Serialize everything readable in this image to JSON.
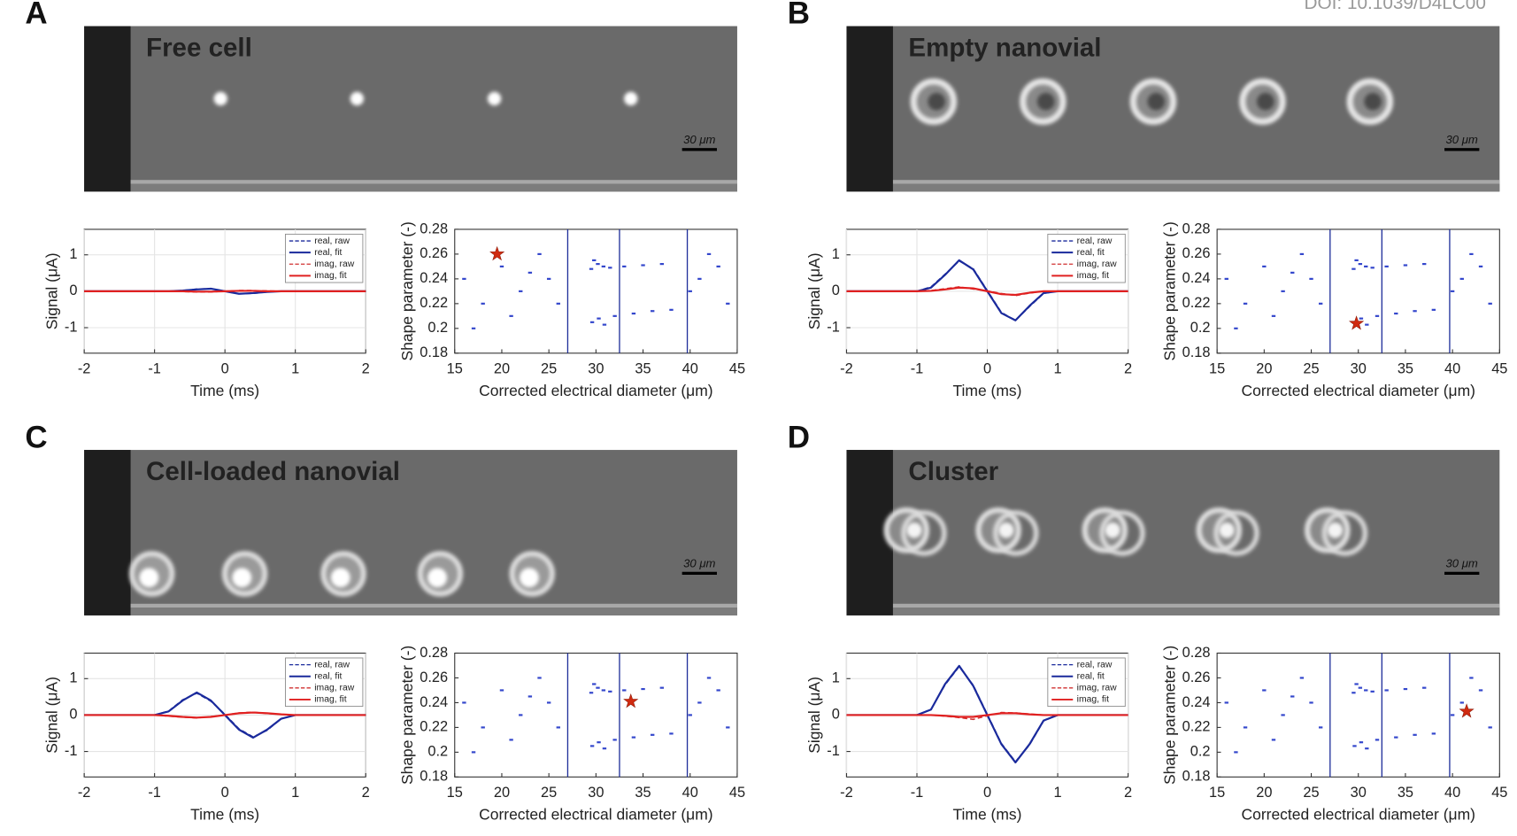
{
  "doi": "DOI: 10.1039/D4LC00",
  "panels": [
    {
      "letter": "A",
      "image_title": "Free cell",
      "title_color": "#f2b597",
      "scale_bar": "30 μm"
    },
    {
      "letter": "B",
      "image_title": "Empty nanovial",
      "title_color": "#5cd98a",
      "scale_bar": "30 μm"
    },
    {
      "letter": "C",
      "image_title": "Cell-loaded nanovial",
      "title_color": "#4aa6e6",
      "scale_bar": "30 μm"
    },
    {
      "letter": "D",
      "image_title": "Cluster",
      "title_color": "#aaaaaa",
      "scale_bar": "30 μm"
    }
  ],
  "chart_data": [
    {
      "type": "line",
      "xlabel": "Time (ms)",
      "ylabel": "Signal (μA)",
      "x": [
        -2,
        -1,
        -0.8,
        -0.6,
        -0.4,
        -0.2,
        0,
        0.2,
        0.4,
        0.6,
        0.8,
        1,
        2
      ],
      "xlim": [
        -2,
        2
      ],
      "xticks": [
        -2,
        -1,
        0,
        1,
        2
      ],
      "ylim": [
        -1.7,
        1.7
      ],
      "yticks": [
        -1,
        0,
        1
      ],
      "grid": true,
      "legend": "upper right",
      "series": [
        {
          "name": "real, raw",
          "color": "#1a2a9c",
          "dashed": true,
          "values": [
            0,
            0,
            0,
            0.02,
            0.06,
            0.07,
            0,
            -0.07,
            -0.06,
            -0.02,
            0,
            0,
            0
          ]
        },
        {
          "name": "real, fit",
          "color": "#1a2a9c",
          "dashed": false,
          "values": [
            0,
            0,
            0,
            0.02,
            0.05,
            0.07,
            0,
            -0.07,
            -0.05,
            -0.02,
            0,
            0,
            0
          ]
        },
        {
          "name": "imag, raw",
          "color": "#d03030",
          "dashed": true,
          "values": [
            0,
            0,
            0,
            -0.01,
            -0.02,
            -0.02,
            0,
            0.02,
            0.02,
            0.01,
            0,
            0,
            0
          ]
        },
        {
          "name": "imag, fit",
          "color": "#e02020",
          "dashed": false,
          "values": [
            0,
            0,
            0,
            0,
            -0.01,
            -0.01,
            0,
            0.01,
            0.01,
            0,
            0,
            0,
            0
          ]
        }
      ]
    },
    {
      "type": "scatter",
      "xlabel": "Corrected electrical diameter (μm)",
      "ylabel": "Shape parameter (-)",
      "xlim": [
        15,
        45
      ],
      "xticks": [
        15,
        20,
        25,
        30,
        35,
        40,
        45
      ],
      "ylim": [
        0.18,
        0.28
      ],
      "yticks": [
        0.18,
        0.2,
        0.22,
        0.24,
        0.26,
        0.28
      ],
      "gates": [
        27,
        32.5,
        39.7
      ],
      "gate_color": "#1f2f9a",
      "points": {
        "color": "#3447cc",
        "x": [
          29.5,
          30.2,
          30.8,
          29.8,
          31.5,
          33,
          35,
          37,
          29.6,
          30.3,
          30.9,
          32,
          34,
          36,
          38,
          16,
          18,
          20,
          22,
          24,
          17,
          21,
          25,
          41,
          43,
          44,
          42,
          40,
          26,
          23
        ],
        "y": [
          0.248,
          0.252,
          0.25,
          0.255,
          0.249,
          0.25,
          0.251,
          0.252,
          0.205,
          0.208,
          0.203,
          0.21,
          0.212,
          0.214,
          0.215,
          0.24,
          0.22,
          0.25,
          0.23,
          0.26,
          0.2,
          0.21,
          0.24,
          0.24,
          0.25,
          0.22,
          0.26,
          0.23,
          0.22,
          0.245
        ]
      },
      "highlight": {
        "x": 19.5,
        "y": 0.26,
        "color": "#d02a10"
      }
    },
    {
      "type": "line",
      "xlabel": "Time (ms)",
      "ylabel": "Signal (μA)",
      "x": [
        -2,
        -1,
        -0.8,
        -0.6,
        -0.4,
        -0.2,
        0,
        0.2,
        0.4,
        0.6,
        0.8,
        1,
        2
      ],
      "xlim": [
        -2,
        2
      ],
      "xticks": [
        -2,
        -1,
        0,
        1,
        2
      ],
      "ylim": [
        -1.7,
        1.7
      ],
      "yticks": [
        -1,
        0,
        1
      ],
      "grid": true,
      "legend": "upper right",
      "series": [
        {
          "name": "real, raw",
          "color": "#1a2a9c",
          "dashed": true,
          "values": [
            0,
            0,
            0.12,
            0.47,
            0.83,
            0.62,
            0.02,
            -0.58,
            -0.8,
            -0.42,
            -0.06,
            0,
            0
          ]
        },
        {
          "name": "real, fit",
          "color": "#1a2a9c",
          "dashed": false,
          "values": [
            0,
            0,
            0.1,
            0.45,
            0.85,
            0.6,
            0,
            -0.6,
            -0.8,
            -0.4,
            -0.05,
            0,
            0
          ]
        },
        {
          "name": "imag, raw",
          "color": "#d03030",
          "dashed": true,
          "values": [
            0,
            0,
            0.02,
            0.07,
            0.12,
            0.06,
            0.01,
            -0.06,
            -0.12,
            -0.05,
            0,
            0,
            0
          ]
        },
        {
          "name": "imag, fit",
          "color": "#e02020",
          "dashed": false,
          "values": [
            0,
            0,
            0.01,
            0.05,
            0.1,
            0.08,
            0,
            -0.08,
            -0.1,
            -0.04,
            0,
            0,
            0
          ]
        }
      ]
    },
    {
      "type": "scatter",
      "xlabel": "Corrected electrical diameter (μm)",
      "ylabel": "Shape parameter (-)",
      "xlim": [
        15,
        45
      ],
      "xticks": [
        15,
        20,
        25,
        30,
        35,
        40,
        45
      ],
      "ylim": [
        0.18,
        0.28
      ],
      "yticks": [
        0.18,
        0.2,
        0.22,
        0.24,
        0.26,
        0.28
      ],
      "gates": [
        27,
        32.5,
        39.7
      ],
      "gate_color": "#1f2f9a",
      "points": {
        "color": "#3447cc",
        "x": [
          29.5,
          30.2,
          30.8,
          29.8,
          31.5,
          33,
          35,
          37,
          29.6,
          30.3,
          30.9,
          32,
          34,
          36,
          38,
          16,
          18,
          20,
          22,
          24,
          17,
          21,
          25,
          41,
          43,
          44,
          42,
          40,
          26,
          23
        ],
        "y": [
          0.248,
          0.252,
          0.25,
          0.255,
          0.249,
          0.25,
          0.251,
          0.252,
          0.205,
          0.208,
          0.203,
          0.21,
          0.212,
          0.214,
          0.215,
          0.24,
          0.22,
          0.25,
          0.23,
          0.26,
          0.2,
          0.21,
          0.24,
          0.24,
          0.25,
          0.22,
          0.26,
          0.23,
          0.22,
          0.245
        ]
      },
      "highlight": {
        "x": 29.8,
        "y": 0.204,
        "color": "#d02a10"
      }
    },
    {
      "type": "line",
      "xlabel": "Time (ms)",
      "ylabel": "Signal (μA)",
      "x": [
        -2,
        -1,
        -0.8,
        -0.6,
        -0.4,
        -0.2,
        0,
        0.2,
        0.4,
        0.6,
        0.8,
        1,
        2
      ],
      "xlim": [
        -2,
        2
      ],
      "xticks": [
        -2,
        -1,
        0,
        1,
        2
      ],
      "ylim": [
        -1.7,
        1.7
      ],
      "yticks": [
        -1,
        0,
        1
      ],
      "grid": true,
      "legend": "upper right",
      "series": [
        {
          "name": "real, raw",
          "color": "#1a2a9c",
          "dashed": true,
          "values": [
            0,
            0,
            0.11,
            0.42,
            0.6,
            0.38,
            0.02,
            -0.38,
            -0.6,
            -0.42,
            -0.1,
            0,
            0
          ]
        },
        {
          "name": "real, fit",
          "color": "#1a2a9c",
          "dashed": false,
          "values": [
            0,
            0,
            0.1,
            0.4,
            0.62,
            0.4,
            0,
            -0.4,
            -0.62,
            -0.4,
            -0.1,
            0,
            0
          ]
        },
        {
          "name": "imag, raw",
          "color": "#d03030",
          "dashed": true,
          "values": [
            0,
            0,
            -0.03,
            -0.06,
            -0.08,
            -0.04,
            0,
            0.06,
            0.08,
            0.04,
            0.02,
            0,
            0
          ]
        },
        {
          "name": "imag, fit",
          "color": "#e02020",
          "dashed": false,
          "values": [
            0,
            0,
            -0.02,
            -0.05,
            -0.07,
            -0.05,
            0,
            0.05,
            0.07,
            0.05,
            0.02,
            0,
            0
          ]
        }
      ]
    },
    {
      "type": "scatter",
      "xlabel": "Corrected electrical diameter (μm)",
      "ylabel": "Shape parameter (-)",
      "xlim": [
        15,
        45
      ],
      "xticks": [
        15,
        20,
        25,
        30,
        35,
        40,
        45
      ],
      "ylim": [
        0.18,
        0.28
      ],
      "yticks": [
        0.18,
        0.2,
        0.22,
        0.24,
        0.26,
        0.28
      ],
      "gates": [
        27,
        32.5,
        39.7
      ],
      "gate_color": "#1f2f9a",
      "points": {
        "color": "#3447cc",
        "x": [
          29.5,
          30.2,
          30.8,
          29.8,
          31.5,
          33,
          35,
          37,
          29.6,
          30.3,
          30.9,
          32,
          34,
          36,
          38,
          16,
          18,
          20,
          22,
          24,
          17,
          21,
          25,
          41,
          43,
          44,
          42,
          40,
          26,
          23
        ],
        "y": [
          0.248,
          0.252,
          0.25,
          0.255,
          0.249,
          0.25,
          0.251,
          0.252,
          0.205,
          0.208,
          0.203,
          0.21,
          0.212,
          0.214,
          0.215,
          0.24,
          0.22,
          0.25,
          0.23,
          0.26,
          0.2,
          0.21,
          0.24,
          0.24,
          0.25,
          0.22,
          0.26,
          0.23,
          0.22,
          0.245
        ]
      },
      "highlight": {
        "x": 33.7,
        "y": 0.241,
        "color": "#d02a10"
      }
    },
    {
      "type": "line",
      "xlabel": "Time (ms)",
      "ylabel": "Signal (μA)",
      "x": [
        -2,
        -1,
        -0.8,
        -0.6,
        -0.4,
        -0.2,
        0,
        0.2,
        0.4,
        0.6,
        0.8,
        1,
        2
      ],
      "xlim": [
        -2,
        2
      ],
      "xticks": [
        -2,
        -1,
        0,
        1,
        2
      ],
      "ylim": [
        -1.7,
        1.7
      ],
      "yticks": [
        -1,
        0,
        1
      ],
      "grid": true,
      "legend": "upper right",
      "series": [
        {
          "name": "real, raw",
          "color": "#1a2a9c",
          "dashed": true,
          "values": [
            0,
            0,
            0.16,
            0.83,
            1.33,
            0.82,
            0.02,
            -0.78,
            -1.28,
            -0.82,
            -0.16,
            0,
            0
          ]
        },
        {
          "name": "real, fit",
          "color": "#1a2a9c",
          "dashed": false,
          "values": [
            0,
            0,
            0.15,
            0.85,
            1.35,
            0.8,
            0,
            -0.8,
            -1.3,
            -0.8,
            -0.15,
            0,
            0
          ]
        },
        {
          "name": "imag, raw",
          "color": "#d03030",
          "dashed": true,
          "values": [
            0,
            0,
            0,
            -0.03,
            -0.07,
            -0.12,
            -0.02,
            0.07,
            0.06,
            0.03,
            0,
            0,
            0
          ]
        },
        {
          "name": "imag, fit",
          "color": "#e02020",
          "dashed": false,
          "values": [
            0,
            0,
            0,
            -0.02,
            -0.05,
            -0.05,
            0,
            0.05,
            0.05,
            0.02,
            0,
            0,
            0
          ]
        }
      ]
    },
    {
      "type": "scatter",
      "xlabel": "Corrected electrical diameter (μm)",
      "ylabel": "Shape parameter (-)",
      "xlim": [
        15,
        45
      ],
      "xticks": [
        15,
        20,
        25,
        30,
        35,
        40,
        45
      ],
      "ylim": [
        0.18,
        0.28
      ],
      "yticks": [
        0.18,
        0.2,
        0.22,
        0.24,
        0.26,
        0.28
      ],
      "gates": [
        27,
        32.5,
        39.7
      ],
      "gate_color": "#1f2f9a",
      "points": {
        "color": "#3447cc",
        "x": [
          29.5,
          30.2,
          30.8,
          29.8,
          31.5,
          33,
          35,
          37,
          29.6,
          30.3,
          30.9,
          32,
          34,
          36,
          38,
          16,
          18,
          20,
          22,
          24,
          17,
          21,
          25,
          41,
          43,
          44,
          42,
          40,
          26,
          23
        ],
        "y": [
          0.248,
          0.252,
          0.25,
          0.255,
          0.249,
          0.25,
          0.251,
          0.252,
          0.205,
          0.208,
          0.203,
          0.21,
          0.212,
          0.214,
          0.215,
          0.24,
          0.22,
          0.25,
          0.23,
          0.26,
          0.2,
          0.21,
          0.24,
          0.24,
          0.25,
          0.22,
          0.26,
          0.23,
          0.22,
          0.245
        ]
      },
      "highlight": {
        "x": 41.5,
        "y": 0.233,
        "color": "#d02a10"
      }
    }
  ]
}
